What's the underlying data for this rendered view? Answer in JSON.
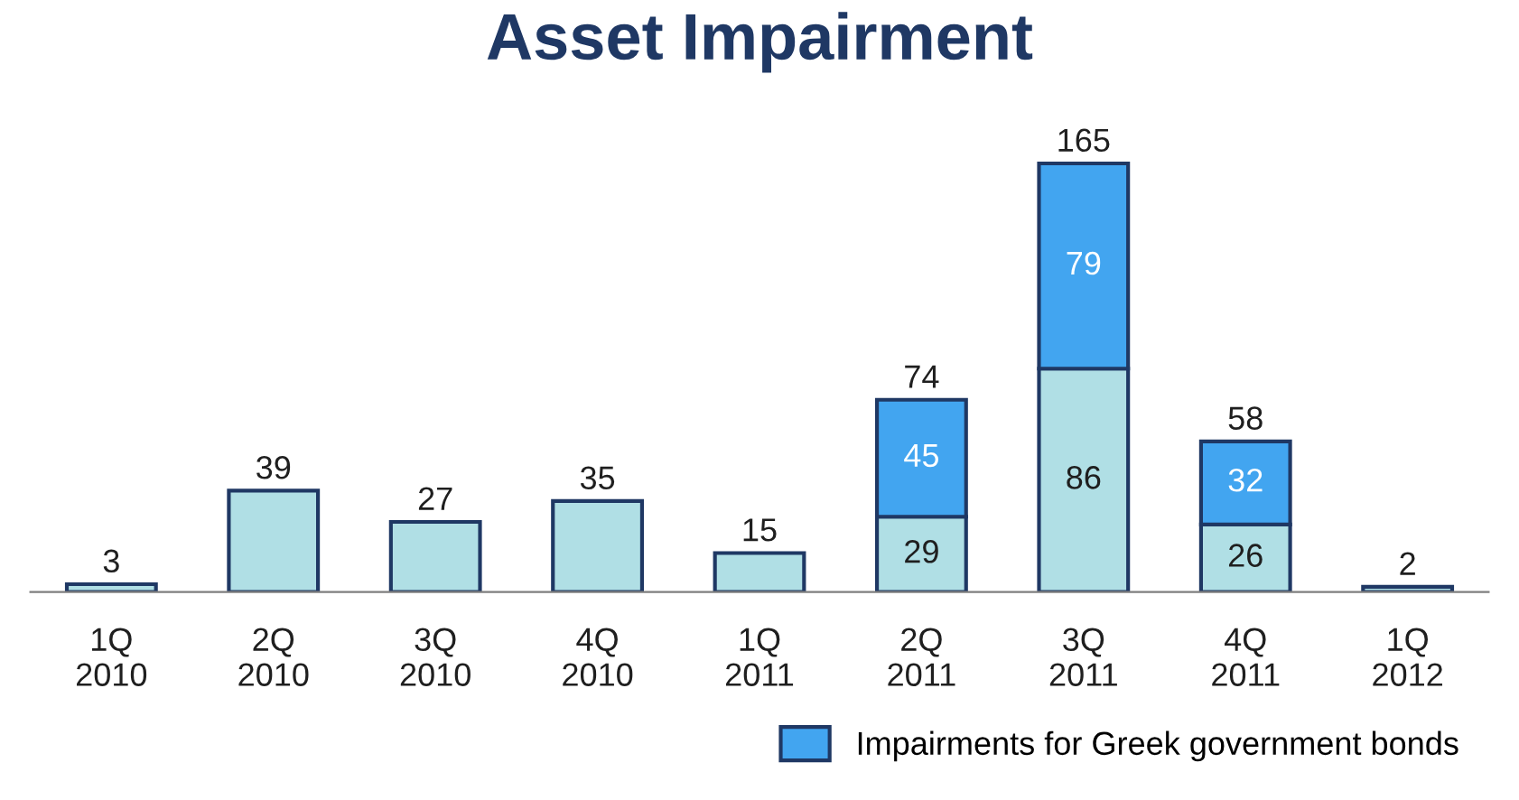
{
  "chart_data": {
    "type": "bar",
    "title": "Asset Impairment",
    "stacked": true,
    "categories": [
      "1Q\n2010",
      "2Q\n2010",
      "3Q\n2010",
      "4Q\n2010",
      "1Q\n2011",
      "2Q\n2011",
      "3Q\n2011",
      "4Q\n2011",
      "1Q\n2012"
    ],
    "series": [
      {
        "color": "#b0dfe5",
        "values": [
          3,
          39,
          27,
          35,
          15,
          29,
          86,
          26,
          2
        ],
        "value_labels": [
          null,
          null,
          null,
          null,
          null,
          "29",
          "86",
          "26",
          null
        ]
      },
      {
        "name": "Impairments for Greek government bonds",
        "color": "#42a5f0",
        "values": [
          null,
          null,
          null,
          null,
          null,
          45,
          79,
          32,
          null
        ],
        "value_labels": [
          null,
          null,
          null,
          null,
          null,
          "45",
          "79",
          "32",
          null
        ]
      }
    ],
    "totals": [
      "3",
      "39",
      "27",
      "35",
      "15",
      "74",
      "165",
      "58",
      "2"
    ],
    "legend": "bottom right",
    "grid": false
  }
}
